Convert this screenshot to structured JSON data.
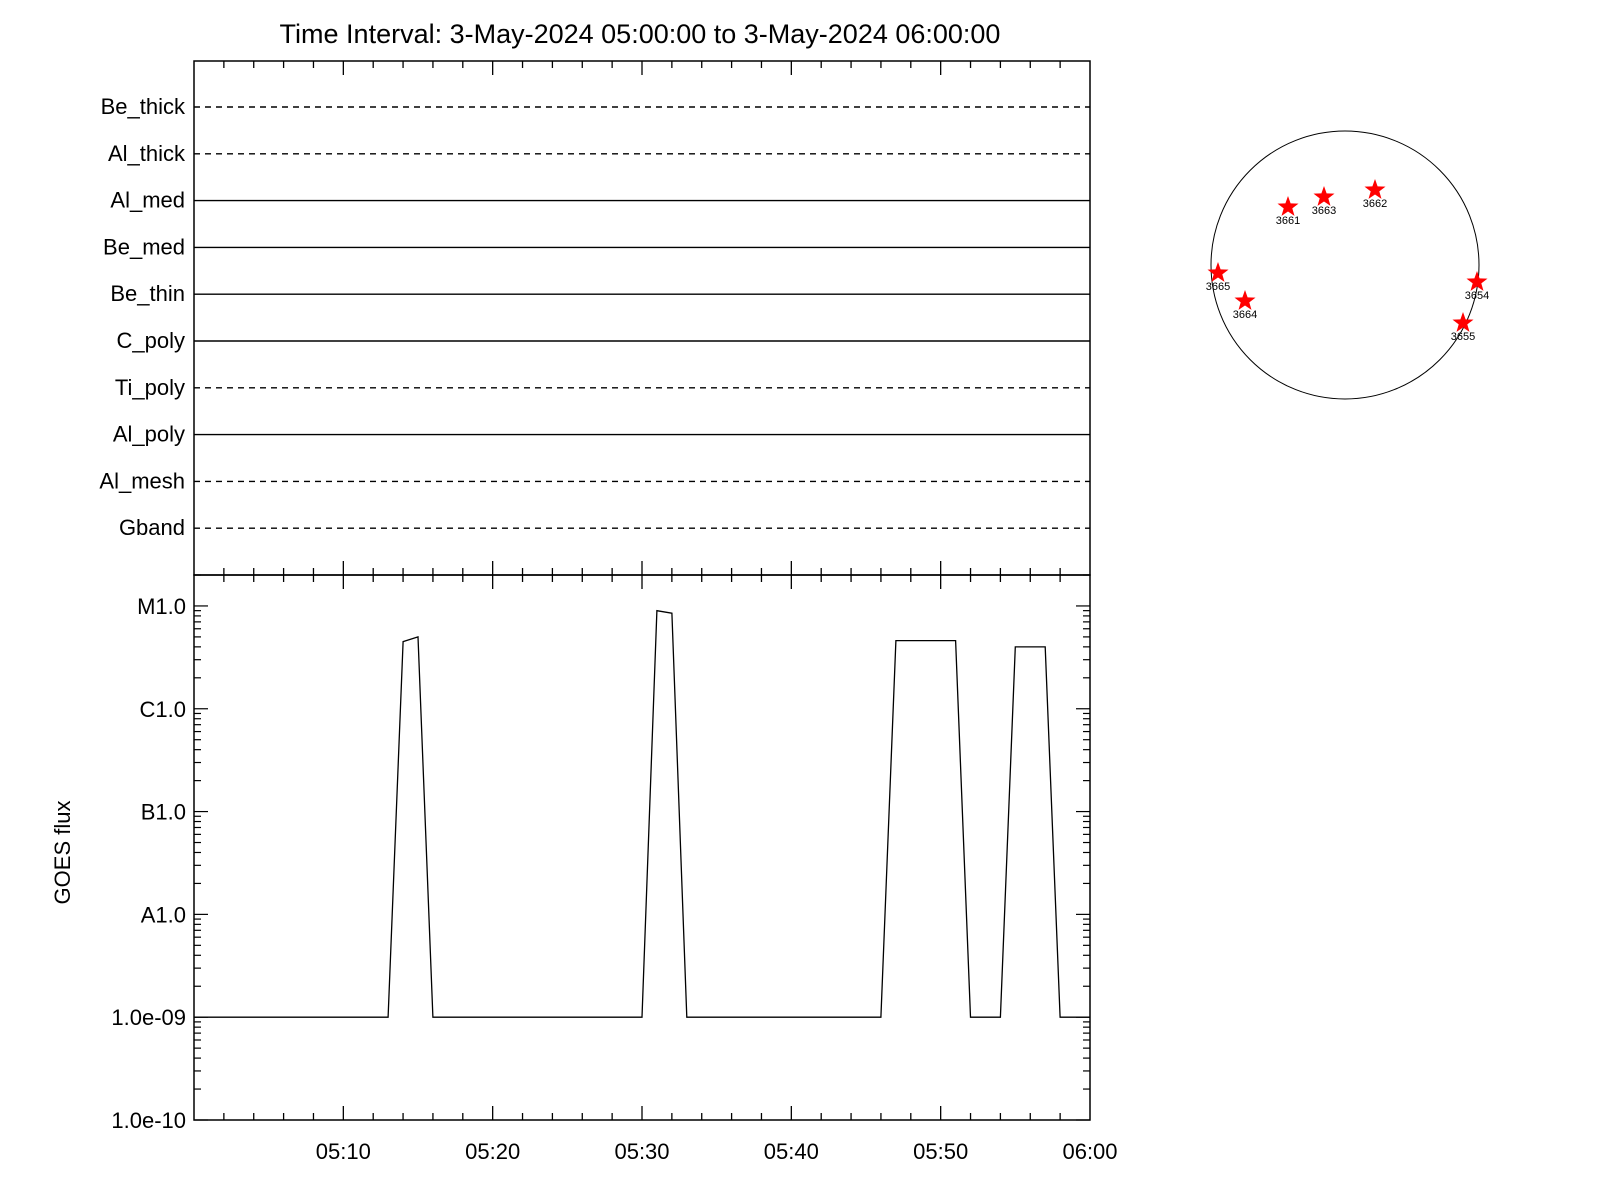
{
  "title": "Time Interval:  3-May-2024 05:00:00 to  3-May-2024 06:00:00",
  "chart_data": [
    {
      "type": "timeline",
      "panel": "filter_status",
      "rows": [
        {
          "label": "Be_thick",
          "style": "dashed"
        },
        {
          "label": "Al_thick",
          "style": "dashed"
        },
        {
          "label": "Al_med",
          "style": "solid"
        },
        {
          "label": "Be_med",
          "style": "solid"
        },
        {
          "label": "Be_thin",
          "style": "solid"
        },
        {
          "label": "C_poly",
          "style": "solid"
        },
        {
          "label": "Ti_poly",
          "style": "dashed"
        },
        {
          "label": "Al_poly",
          "style": "solid"
        },
        {
          "label": "Al_mesh",
          "style": "dashed"
        },
        {
          "label": "Gband",
          "style": "dashed"
        }
      ],
      "xlim": [
        "05:00",
        "06:00"
      ]
    },
    {
      "type": "line",
      "panel": "goes_flux",
      "ylabel": "GOES flux",
      "yscale": "log",
      "ylim": [
        1e-10,
        2e-05
      ],
      "yticks": [
        {
          "value": 1e-10,
          "label": "1.0e-10"
        },
        {
          "value": 1e-09,
          "label": "1.0e-09"
        },
        {
          "value": 1e-08,
          "label": "A1.0"
        },
        {
          "value": 1e-07,
          "label": "B1.0"
        },
        {
          "value": 1e-06,
          "label": "C1.0"
        },
        {
          "value": 1e-05,
          "label": "M1.0"
        }
      ],
      "xlim": [
        "05:00",
        "06:00"
      ],
      "xticks": [
        "05:10",
        "05:20",
        "05:30",
        "05:40",
        "05:50",
        "06:00"
      ],
      "x": [
        "05:00",
        "05:13",
        "05:14",
        "05:15",
        "05:16",
        "05:30",
        "05:31",
        "05:32",
        "05:33",
        "05:46",
        "05:47",
        "05:51",
        "05:52",
        "05:54",
        "05:55",
        "05:57",
        "05:58",
        "06:00"
      ],
      "y": [
        1e-09,
        1e-09,
        4.5e-06,
        5e-06,
        1e-09,
        1e-09,
        9e-06,
        8.5e-06,
        1e-09,
        1e-09,
        4.6e-06,
        4.6e-06,
        1e-09,
        1e-09,
        4e-06,
        4e-06,
        1e-09,
        1e-09
      ]
    },
    {
      "type": "scatter",
      "panel": "solar_disk_active_regions",
      "points": [
        {
          "label": "3661",
          "marker_color": "#ff0000"
        },
        {
          "label": "3663",
          "marker_color": "#ff0000"
        },
        {
          "label": "3662",
          "marker_color": "#ff0000"
        },
        {
          "label": "3665",
          "marker_color": "#ff0000"
        },
        {
          "label": "3664",
          "marker_color": "#ff0000"
        },
        {
          "label": "3654",
          "marker_color": "#ff0000"
        },
        {
          "label": "3655",
          "marker_color": "#ff0000"
        }
      ]
    }
  ],
  "colors": {
    "line": "#000000",
    "marker": "#ff0000"
  }
}
